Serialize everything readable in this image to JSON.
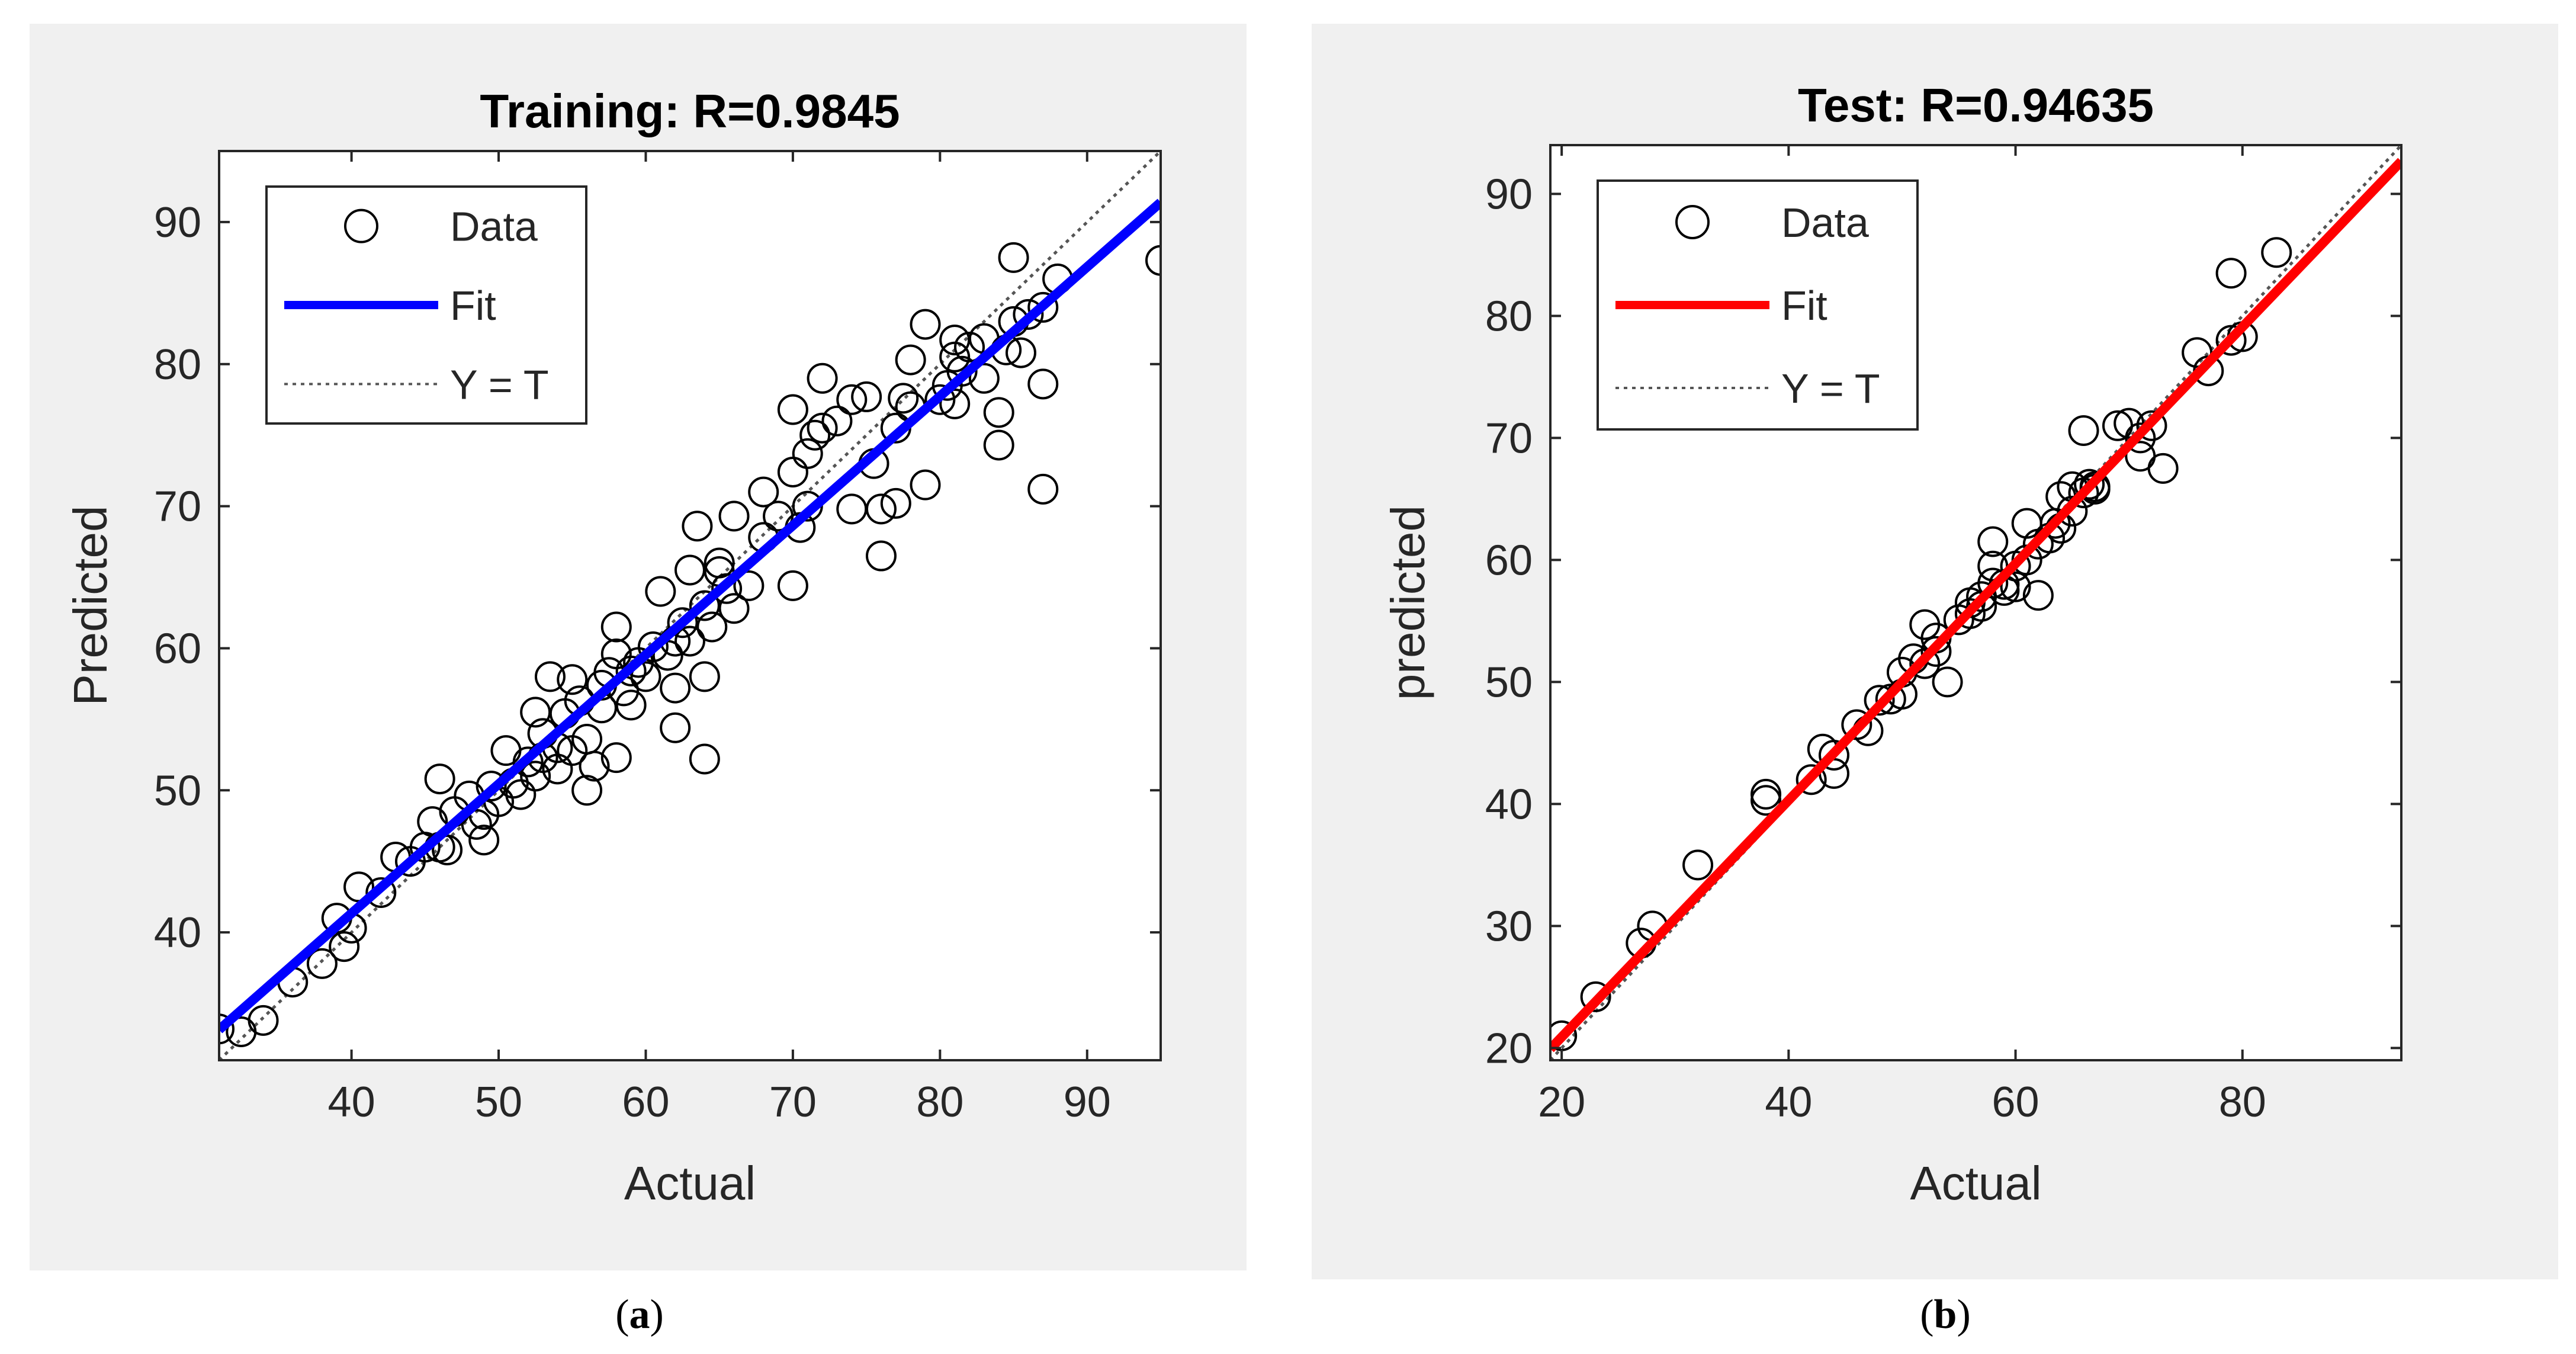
{
  "figure": {
    "panels": [
      {
        "caption_letter": "a"
      },
      {
        "caption_letter": "b"
      }
    ]
  },
  "chart_data": [
    {
      "type": "scatter",
      "title": "Training: R=0.9845",
      "xlabel": "Actual",
      "ylabel": "Predicted",
      "xlim": [
        31,
        95
      ],
      "ylim": [
        31,
        95
      ],
      "xticks": [
        40,
        50,
        60,
        70,
        80,
        90
      ],
      "yticks": [
        40,
        50,
        60,
        70,
        80,
        90
      ],
      "legend": {
        "position": "top-left",
        "entries": [
          {
            "label": "Data",
            "kind": "marker"
          },
          {
            "label": "Fit",
            "kind": "line"
          },
          {
            "label": "Y = T",
            "kind": "dotted"
          }
        ]
      },
      "fit": {
        "slope": 0.91,
        "intercept": 4.94,
        "color": "#0000ff"
      },
      "identity_line": {
        "color": "#555555"
      },
      "points": [
        [
          31,
          33.2
        ],
        [
          32.5,
          33
        ],
        [
          34,
          33.8
        ],
        [
          36,
          36.5
        ],
        [
          38,
          37.8
        ],
        [
          39,
          41
        ],
        [
          39.5,
          39
        ],
        [
          40,
          40.3
        ],
        [
          40.5,
          43.2
        ],
        [
          42,
          42.8
        ],
        [
          43,
          45.3
        ],
        [
          44,
          45
        ],
        [
          45,
          46
        ],
        [
          45.5,
          47.8
        ],
        [
          46,
          50.8
        ],
        [
          46,
          46
        ],
        [
          46.5,
          45.8
        ],
        [
          47,
          48.5
        ],
        [
          48,
          49.6
        ],
        [
          48.5,
          47.6
        ],
        [
          49,
          48.3
        ],
        [
          49,
          46.5
        ],
        [
          49.5,
          50.3
        ],
        [
          50,
          49.2
        ],
        [
          50.5,
          52.8
        ],
        [
          51,
          50.5
        ],
        [
          51.5,
          49.7
        ],
        [
          52,
          52
        ],
        [
          52.5,
          55.5
        ],
        [
          52.5,
          51
        ],
        [
          53,
          54
        ],
        [
          53,
          52.3
        ],
        [
          53.5,
          58
        ],
        [
          54,
          51.5
        ],
        [
          54,
          53
        ],
        [
          54.5,
          55.4
        ],
        [
          55,
          52.8
        ],
        [
          55,
          57.8
        ],
        [
          55.5,
          56.3
        ],
        [
          56,
          53.6
        ],
        [
          56,
          50
        ],
        [
          56.5,
          51.7
        ],
        [
          57,
          55.8
        ],
        [
          57,
          57.4
        ],
        [
          57.5,
          58.3
        ],
        [
          58,
          52.3
        ],
        [
          58,
          59.6
        ],
        [
          58,
          61.5
        ],
        [
          58.5,
          57
        ],
        [
          59,
          58.4
        ],
        [
          59,
          56
        ],
        [
          59.5,
          59
        ],
        [
          60,
          58
        ],
        [
          60.5,
          60.1
        ],
        [
          61,
          64
        ],
        [
          61.5,
          59.5
        ],
        [
          62,
          57.2
        ],
        [
          62,
          54.4
        ],
        [
          62,
          60.5
        ],
        [
          62.5,
          61.8
        ],
        [
          63,
          60.5
        ],
        [
          63,
          65.5
        ],
        [
          63.5,
          68.6
        ],
        [
          64,
          52.2
        ],
        [
          64,
          58
        ],
        [
          64,
          63
        ],
        [
          64.5,
          61.5
        ],
        [
          65,
          66
        ],
        [
          65,
          65.4
        ],
        [
          65.5,
          64.2
        ],
        [
          66,
          62.8
        ],
        [
          66,
          69.3
        ],
        [
          67,
          64.4
        ],
        [
          68,
          67.8
        ],
        [
          68,
          71
        ],
        [
          69,
          69.3
        ],
        [
          70,
          64.4
        ],
        [
          70,
          72.4
        ],
        [
          70,
          76.8
        ],
        [
          70.5,
          68.5
        ],
        [
          71,
          70
        ],
        [
          71,
          73.7
        ],
        [
          71.5,
          75
        ],
        [
          72,
          79
        ],
        [
          72,
          75.5
        ],
        [
          73,
          76
        ],
        [
          74,
          69.8
        ],
        [
          74,
          77.5
        ],
        [
          75,
          77.7
        ],
        [
          75.5,
          73
        ],
        [
          76,
          66.5
        ],
        [
          76,
          69.8
        ],
        [
          77,
          70.2
        ],
        [
          77,
          75.5
        ],
        [
          77.5,
          77.6
        ],
        [
          78,
          77
        ],
        [
          78,
          80.3
        ],
        [
          79,
          71.5
        ],
        [
          79,
          82.8
        ],
        [
          80,
          77.5
        ],
        [
          80.5,
          78.5
        ],
        [
          81,
          80.5
        ],
        [
          81,
          77.2
        ],
        [
          81,
          81.7
        ],
        [
          81.5,
          79.5
        ],
        [
          82,
          81.2
        ],
        [
          83,
          79
        ],
        [
          83,
          81.8
        ],
        [
          84,
          74.3
        ],
        [
          84,
          76.6
        ],
        [
          84.5,
          81
        ],
        [
          85,
          87.5
        ],
        [
          85,
          83
        ],
        [
          85.5,
          80.8
        ],
        [
          86,
          83.5
        ],
        [
          87,
          71.2
        ],
        [
          87,
          78.6
        ],
        [
          87,
          84
        ],
        [
          88,
          86
        ],
        [
          95,
          87.3
        ]
      ]
    },
    {
      "type": "scatter",
      "title": "Test: R=0.94635",
      "xlabel": "Actual",
      "ylabel": "predicted",
      "xlim": [
        19,
        94
      ],
      "ylim": [
        19,
        94
      ],
      "xticks": [
        20,
        40,
        60,
        80
      ],
      "yticks": [
        20,
        30,
        40,
        50,
        60,
        70,
        80,
        90
      ],
      "legend": {
        "position": "top-left",
        "entries": [
          {
            "label": "Data",
            "kind": "marker"
          },
          {
            "label": "Fit",
            "kind": "line"
          },
          {
            "label": "Y = T",
            "kind": "dotted"
          }
        ]
      },
      "fit": {
        "slope": 0.97,
        "intercept": 1.5,
        "color": "#ff0000"
      },
      "identity_line": {
        "color": "#555555"
      },
      "points": [
        [
          20,
          21
        ],
        [
          23,
          24.2
        ],
        [
          27,
          28.6
        ],
        [
          28,
          30
        ],
        [
          32,
          35
        ],
        [
          38,
          40.3
        ],
        [
          38,
          40.8
        ],
        [
          42,
          42
        ],
        [
          43,
          44.5
        ],
        [
          44,
          42.5
        ],
        [
          44,
          44
        ],
        [
          46,
          46.5
        ],
        [
          47,
          46
        ],
        [
          48,
          48.5
        ],
        [
          49,
          48.6
        ],
        [
          50,
          49
        ],
        [
          50,
          50.8
        ],
        [
          51,
          51.9
        ],
        [
          52,
          54.7
        ],
        [
          52,
          51.5
        ],
        [
          53,
          52.5
        ],
        [
          53,
          53.6
        ],
        [
          54,
          50
        ],
        [
          55,
          55.1
        ],
        [
          56,
          56.5
        ],
        [
          56,
          55.6
        ],
        [
          57,
          57
        ],
        [
          57,
          56.2
        ],
        [
          58,
          58.1
        ],
        [
          58,
          61.5
        ],
        [
          58,
          59.5
        ],
        [
          59,
          58
        ],
        [
          59,
          57.5
        ],
        [
          60,
          57.8
        ],
        [
          60,
          59.5
        ],
        [
          61,
          60
        ],
        [
          61,
          63
        ],
        [
          62,
          57.1
        ],
        [
          62,
          61.3
        ],
        [
          63,
          61.8
        ],
        [
          63.5,
          63
        ],
        [
          64,
          65.2
        ],
        [
          64,
          62.6
        ],
        [
          65,
          64
        ],
        [
          65,
          66
        ],
        [
          66,
          70.6
        ],
        [
          66,
          65.5
        ],
        [
          66.5,
          66.2
        ],
        [
          67,
          66
        ],
        [
          67,
          65.8
        ],
        [
          69,
          71
        ],
        [
          70,
          71.2
        ],
        [
          71,
          68.5
        ],
        [
          71,
          70
        ],
        [
          72,
          71
        ],
        [
          73,
          67.5
        ],
        [
          76,
          77
        ],
        [
          77,
          75.5
        ],
        [
          79,
          83.5
        ],
        [
          79,
          78
        ],
        [
          80,
          78.3
        ],
        [
          83,
          85.2
        ]
      ]
    }
  ]
}
